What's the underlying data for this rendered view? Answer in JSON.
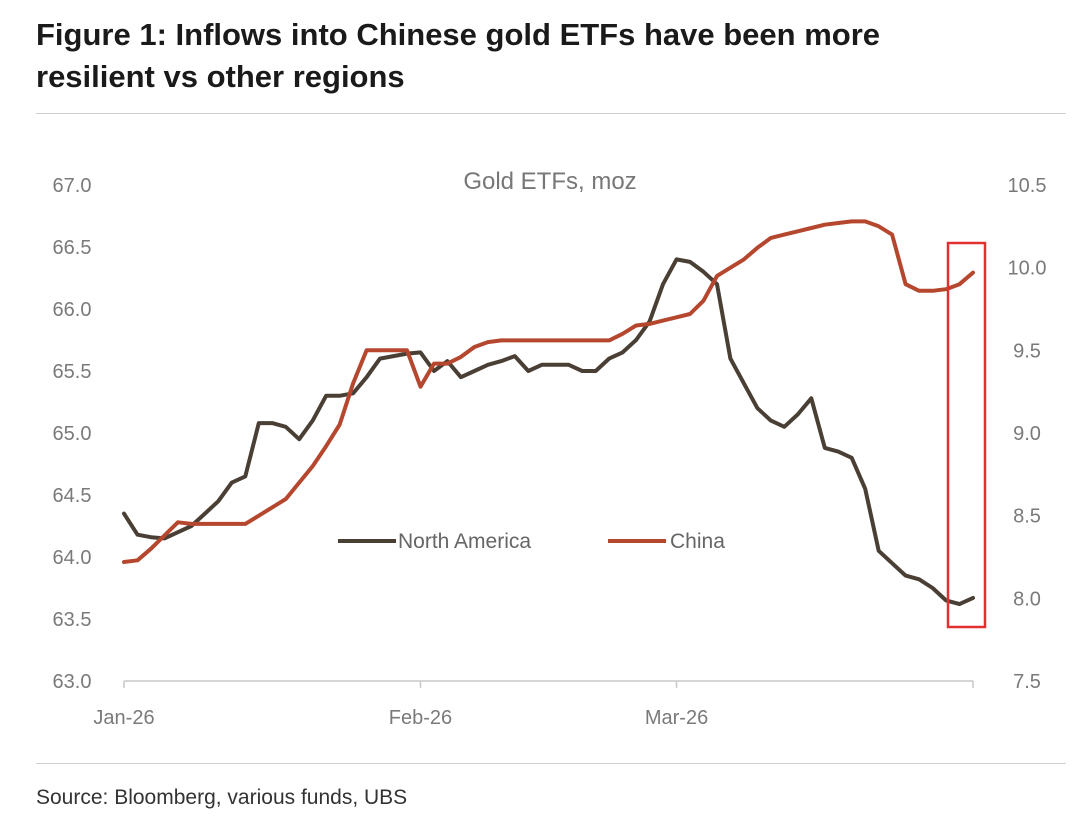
{
  "figure": {
    "title_line1": "Figure 1: Inflows into Chinese gold ETFs have been more",
    "title_line2": "resilient vs other regions",
    "source": "Source: Bloomberg, various funds, UBS"
  },
  "colors": {
    "north_america": "#4a3f35",
    "china": "#b5472f",
    "highlight_box": "#e03030",
    "axis": "#c8c8c8"
  },
  "chart_data": {
    "type": "line",
    "title": "Gold ETFs, moz",
    "x_tick_labels": [
      "Jan-26",
      "Feb-26",
      "Mar-26"
    ],
    "x_tick_positions": [
      0,
      22,
      41
    ],
    "x_range": [
      0,
      63
    ],
    "y_left": {
      "range": [
        63.0,
        67.0
      ],
      "ticks": [
        "63.0",
        "63.5",
        "64.0",
        "64.5",
        "65.0",
        "65.5",
        "66.0",
        "66.5",
        "67.0"
      ]
    },
    "y_right": {
      "range": [
        7.5,
        10.5
      ],
      "ticks": [
        "7.5",
        "8.0",
        "8.5",
        "9.0",
        "9.5",
        "10.0",
        "10.5"
      ]
    },
    "legend_position": "middle",
    "grid": false,
    "highlight": "box around latest data points",
    "series": [
      {
        "name": "North America",
        "axis": "left",
        "values": [
          64.35,
          64.18,
          64.16,
          64.15,
          64.2,
          64.25,
          64.35,
          64.45,
          64.6,
          64.65,
          65.08,
          65.08,
          65.05,
          64.95,
          65.1,
          65.3,
          65.3,
          65.32,
          65.45,
          65.6,
          65.62,
          65.64,
          65.65,
          65.5,
          65.58,
          65.45,
          65.5,
          65.55,
          65.58,
          65.62,
          65.5,
          65.55,
          65.55,
          65.55,
          65.5,
          65.5,
          65.6,
          65.65,
          65.75,
          65.9,
          66.2,
          66.4,
          66.38,
          66.3,
          66.2,
          65.6,
          65.4,
          65.2,
          65.1,
          65.05,
          65.15,
          65.28,
          64.88,
          64.85,
          64.8,
          64.55,
          64.05,
          63.95,
          63.85,
          63.82,
          63.75,
          63.65,
          63.62,
          63.67
        ]
      },
      {
        "name": "China",
        "axis": "right",
        "values": [
          8.22,
          8.23,
          8.3,
          8.38,
          8.46,
          8.45,
          8.45,
          8.45,
          8.45,
          8.45,
          8.5,
          8.55,
          8.6,
          8.7,
          8.8,
          8.92,
          9.05,
          9.3,
          9.5,
          9.5,
          9.5,
          9.5,
          9.28,
          9.42,
          9.42,
          9.46,
          9.52,
          9.55,
          9.56,
          9.56,
          9.56,
          9.56,
          9.56,
          9.56,
          9.56,
          9.56,
          9.56,
          9.6,
          9.65,
          9.66,
          9.68,
          9.7,
          9.72,
          9.8,
          9.95,
          10.0,
          10.05,
          10.12,
          10.18,
          10.2,
          10.22,
          10.24,
          10.26,
          10.27,
          10.28,
          10.28,
          10.25,
          10.2,
          9.9,
          9.86,
          9.86,
          9.87,
          9.9,
          9.97
        ]
      }
    ]
  }
}
